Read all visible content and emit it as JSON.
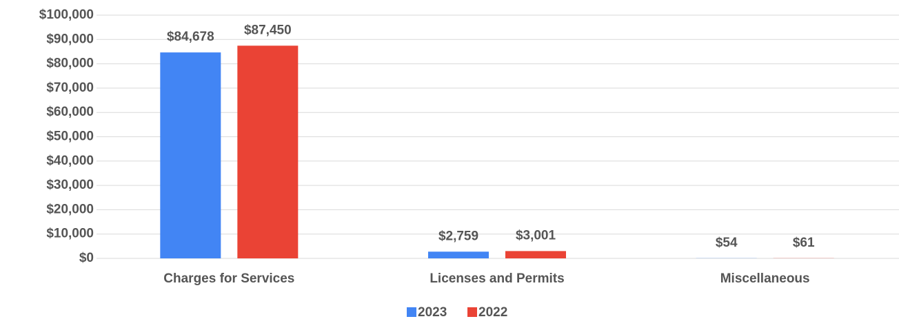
{
  "chart_data": {
    "type": "bar",
    "categories": [
      "Charges for Services",
      "Licenses and Permits",
      "Miscellaneous"
    ],
    "series": [
      {
        "name": "2023",
        "color": "#4285f4",
        "values": [
          84678,
          2759,
          54
        ],
        "value_labels": [
          "$84,678",
          "$2,759",
          "$54"
        ]
      },
      {
        "name": "2022",
        "color": "#ea4335",
        "values": [
          87450,
          3001,
          61
        ],
        "value_labels": [
          "$87,450",
          "$3,001",
          "$61"
        ]
      }
    ],
    "ylim": [
      0,
      100000
    ],
    "yticks": [
      {
        "value": 0,
        "label": "$0"
      },
      {
        "value": 10000,
        "label": "$10,000"
      },
      {
        "value": 20000,
        "label": "$20,000"
      },
      {
        "value": 30000,
        "label": "$30,000"
      },
      {
        "value": 40000,
        "label": "$40,000"
      },
      {
        "value": 50000,
        "label": "$50,000"
      },
      {
        "value": 60000,
        "label": "$60,000"
      },
      {
        "value": 70000,
        "label": "$70,000"
      },
      {
        "value": 80000,
        "label": "$80,000"
      },
      {
        "value": 90000,
        "label": "$90,000"
      },
      {
        "value": 100000,
        "label": "$100,000"
      }
    ],
    "grid": true,
    "legend": "bottom"
  }
}
